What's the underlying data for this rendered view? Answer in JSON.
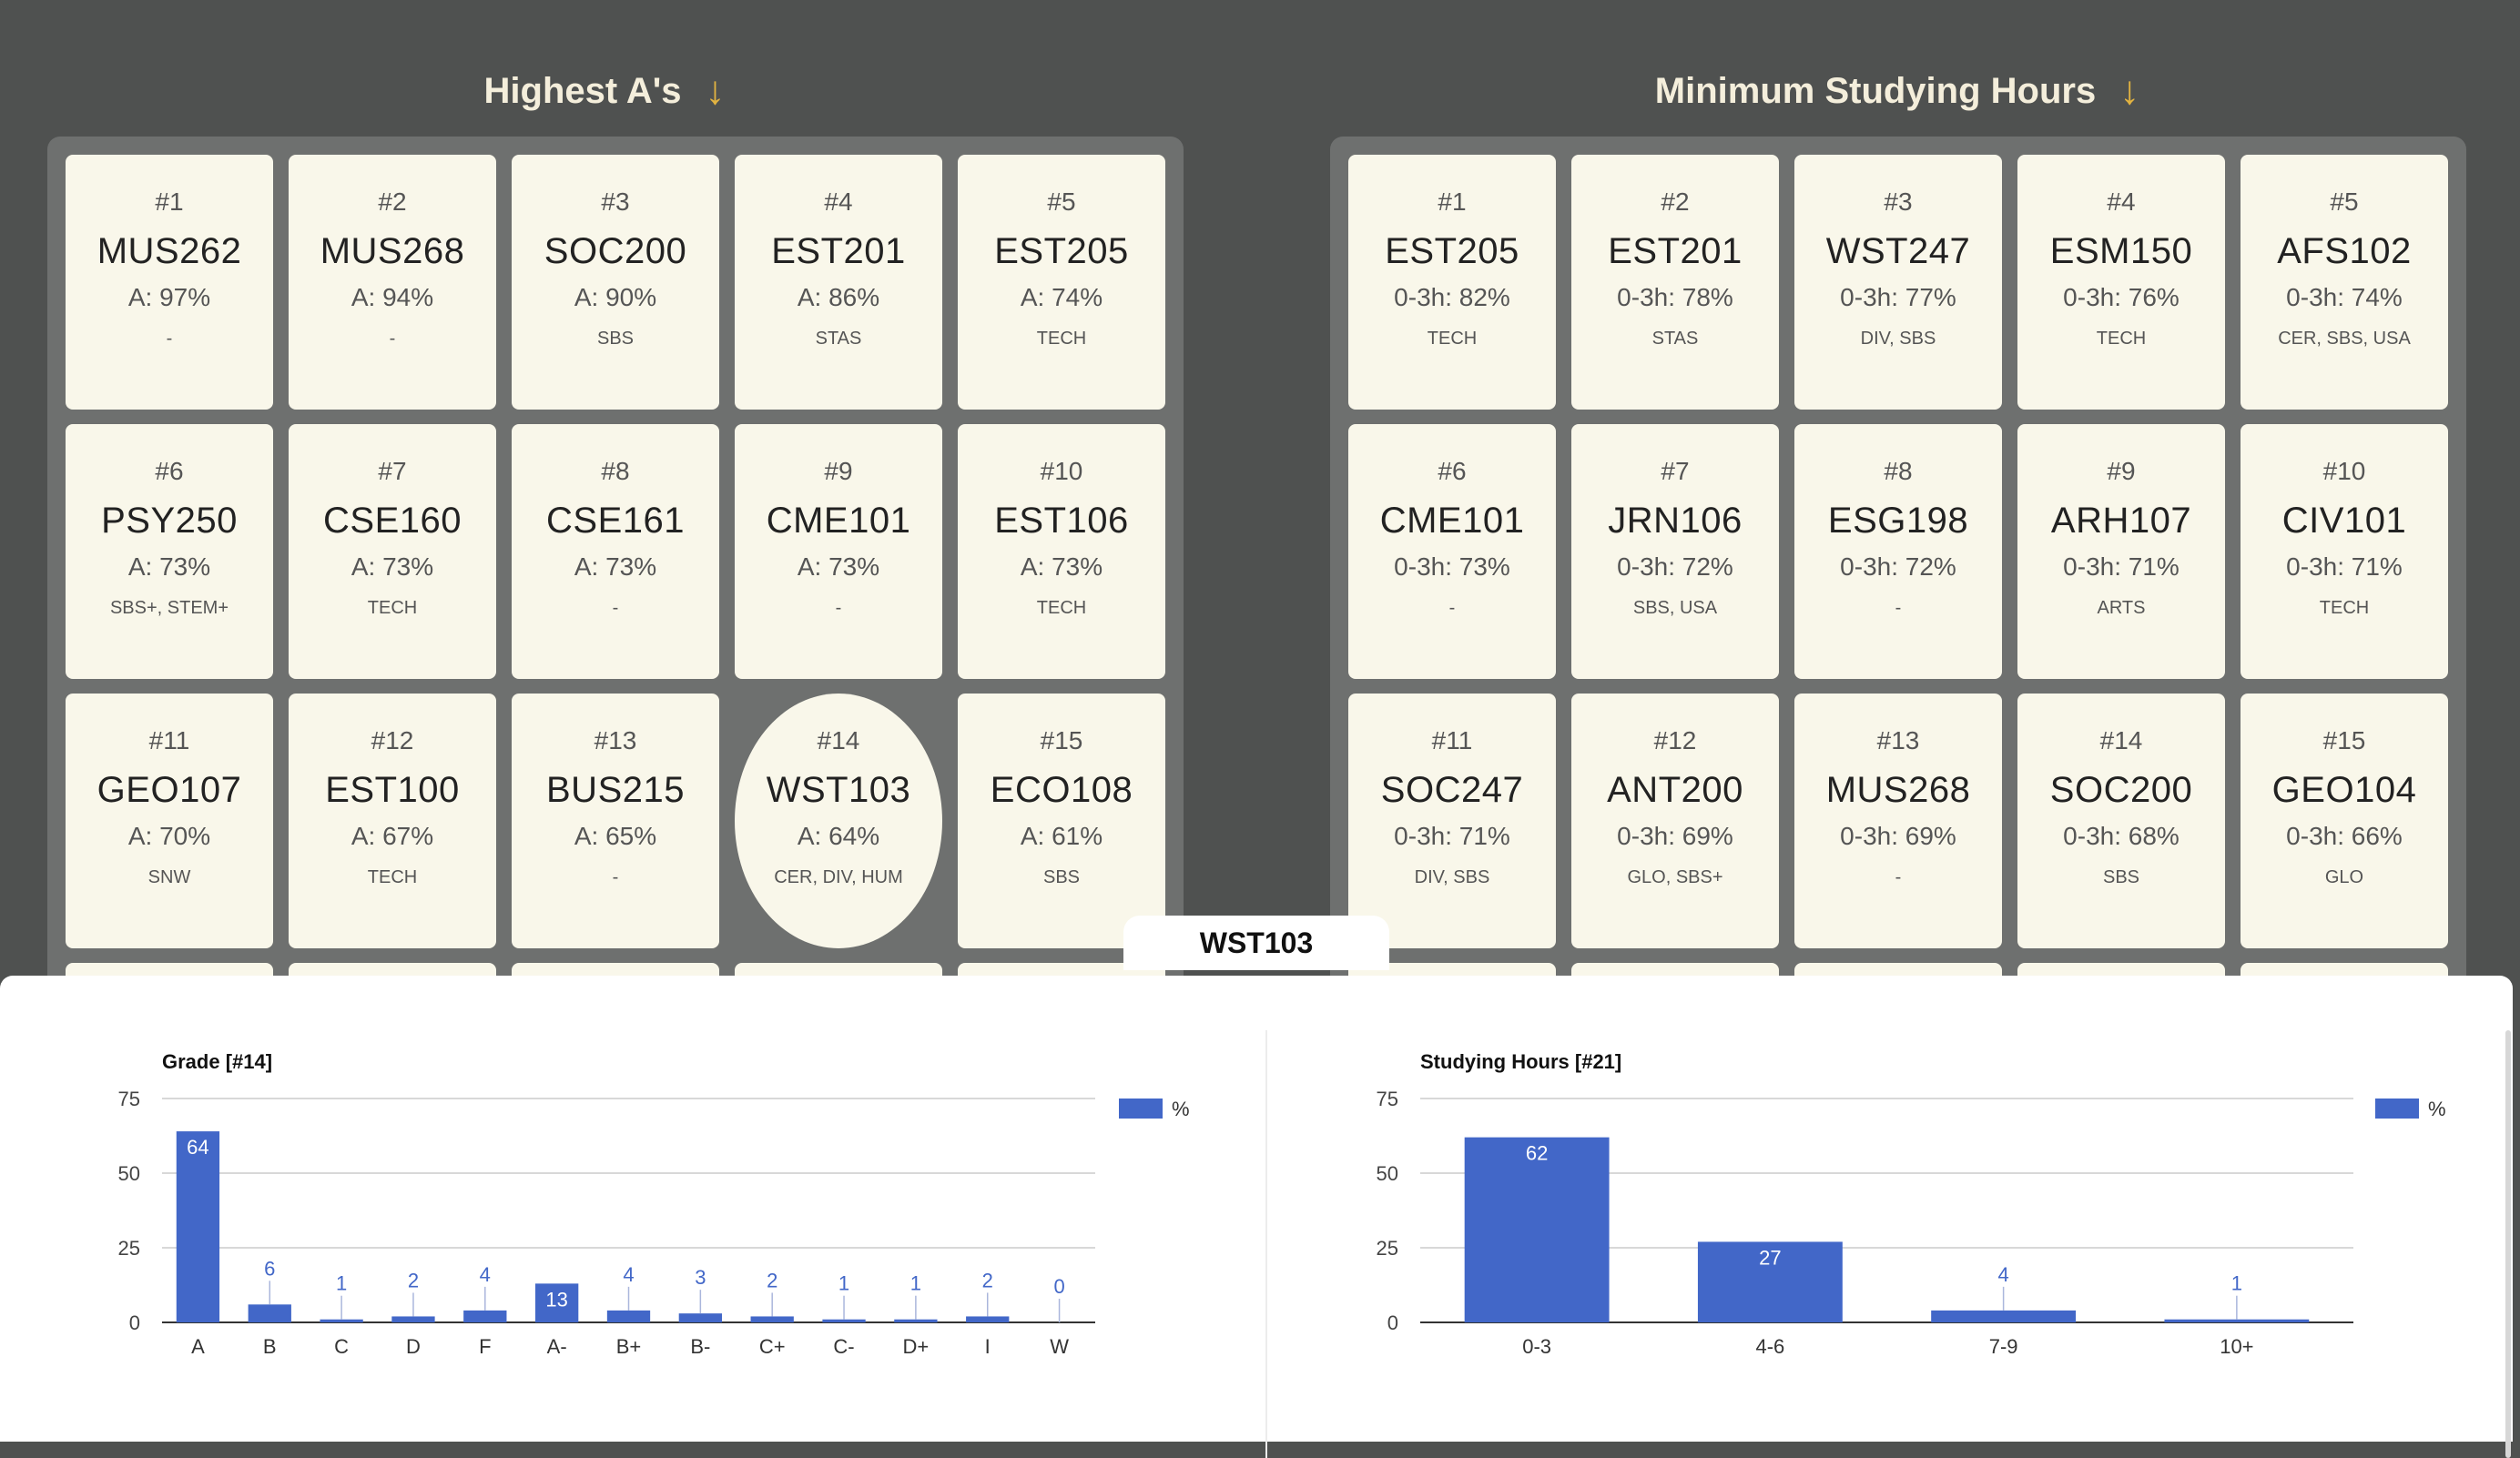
{
  "left_column": {
    "title": "Highest A's",
    "cards": [
      {
        "rank": "#1",
        "code": "MUS262",
        "pct": "A: 97%",
        "tags": "-"
      },
      {
        "rank": "#2",
        "code": "MUS268",
        "pct": "A: 94%",
        "tags": "-"
      },
      {
        "rank": "#3",
        "code": "SOC200",
        "pct": "A: 90%",
        "tags": "SBS"
      },
      {
        "rank": "#4",
        "code": "EST201",
        "pct": "A: 86%",
        "tags": "STAS"
      },
      {
        "rank": "#5",
        "code": "EST205",
        "pct": "A: 74%",
        "tags": "TECH"
      },
      {
        "rank": "#6",
        "code": "PSY250",
        "pct": "A: 73%",
        "tags": "SBS+, STEM+"
      },
      {
        "rank": "#7",
        "code": "CSE160",
        "pct": "A: 73%",
        "tags": "TECH"
      },
      {
        "rank": "#8",
        "code": "CSE161",
        "pct": "A: 73%",
        "tags": "-"
      },
      {
        "rank": "#9",
        "code": "CME101",
        "pct": "A: 73%",
        "tags": "-"
      },
      {
        "rank": "#10",
        "code": "EST106",
        "pct": "A: 73%",
        "tags": "TECH"
      },
      {
        "rank": "#11",
        "code": "GEO107",
        "pct": "A: 70%",
        "tags": "SNW"
      },
      {
        "rank": "#12",
        "code": "EST100",
        "pct": "A: 67%",
        "tags": "TECH"
      },
      {
        "rank": "#13",
        "code": "BUS215",
        "pct": "A: 65%",
        "tags": "-"
      },
      {
        "rank": "#14",
        "code": "WST103",
        "pct": "A: 64%",
        "tags": "CER, DIV, HUM",
        "selected": true
      },
      {
        "rank": "#15",
        "code": "ECO108",
        "pct": "A: 61%",
        "tags": "SBS"
      }
    ]
  },
  "right_column": {
    "title": "Minimum Studying Hours",
    "cards": [
      {
        "rank": "#1",
        "code": "EST205",
        "pct": "0-3h: 82%",
        "tags": "TECH"
      },
      {
        "rank": "#2",
        "code": "EST201",
        "pct": "0-3h: 78%",
        "tags": "STAS"
      },
      {
        "rank": "#3",
        "code": "WST247",
        "pct": "0-3h: 77%",
        "tags": "DIV, SBS"
      },
      {
        "rank": "#4",
        "code": "ESM150",
        "pct": "0-3h: 76%",
        "tags": "TECH"
      },
      {
        "rank": "#5",
        "code": "AFS102",
        "pct": "0-3h: 74%",
        "tags": "CER, SBS, USA"
      },
      {
        "rank": "#6",
        "code": "CME101",
        "pct": "0-3h: 73%",
        "tags": "-"
      },
      {
        "rank": "#7",
        "code": "JRN106",
        "pct": "0-3h: 72%",
        "tags": "SBS, USA"
      },
      {
        "rank": "#8",
        "code": "ESG198",
        "pct": "0-3h: 72%",
        "tags": "-"
      },
      {
        "rank": "#9",
        "code": "ARH107",
        "pct": "0-3h: 71%",
        "tags": "ARTS"
      },
      {
        "rank": "#10",
        "code": "CIV101",
        "pct": "0-3h: 71%",
        "tags": "TECH"
      },
      {
        "rank": "#11",
        "code": "SOC247",
        "pct": "0-3h: 71%",
        "tags": "DIV, SBS"
      },
      {
        "rank": "#12",
        "code": "ANT200",
        "pct": "0-3h: 69%",
        "tags": "GLO, SBS+"
      },
      {
        "rank": "#13",
        "code": "MUS268",
        "pct": "0-3h: 69%",
        "tags": "-"
      },
      {
        "rank": "#14",
        "code": "SOC200",
        "pct": "0-3h: 68%",
        "tags": "SBS"
      },
      {
        "rank": "#15",
        "code": "GEO104",
        "pct": "0-3h: 66%",
        "tags": "GLO"
      }
    ]
  },
  "selected_course": "WST103",
  "colors": {
    "background": "#4f5150",
    "panel": "#6e706f",
    "card": "#f9f7ea",
    "accent_arrow": "#e2b341",
    "bar": "#4267c8"
  },
  "icons": {
    "sort": "arrow-down-icon"
  },
  "chart_data": [
    {
      "type": "bar",
      "title": "Grade [#14]",
      "categories": [
        "A",
        "B",
        "C",
        "D",
        "F",
        "A-",
        "B+",
        "B-",
        "C+",
        "C-",
        "D+",
        "I",
        "W"
      ],
      "series": [
        {
          "name": "%",
          "values": [
            64,
            6,
            1,
            2,
            4,
            13,
            4,
            3,
            2,
            1,
            1,
            2,
            0
          ]
        }
      ],
      "ylim": [
        0,
        75
      ],
      "yticks": [
        0,
        25,
        50,
        75
      ],
      "grid": true,
      "legend": "right"
    },
    {
      "type": "bar",
      "title": "Studying Hours [#21]",
      "categories": [
        "0-3",
        "4-6",
        "7-9",
        "10+"
      ],
      "series": [
        {
          "name": "%",
          "values": [
            62,
            27,
            4,
            1
          ]
        }
      ],
      "ylim": [
        0,
        75
      ],
      "yticks": [
        0,
        25,
        50,
        75
      ],
      "grid": true,
      "legend": "right"
    }
  ]
}
